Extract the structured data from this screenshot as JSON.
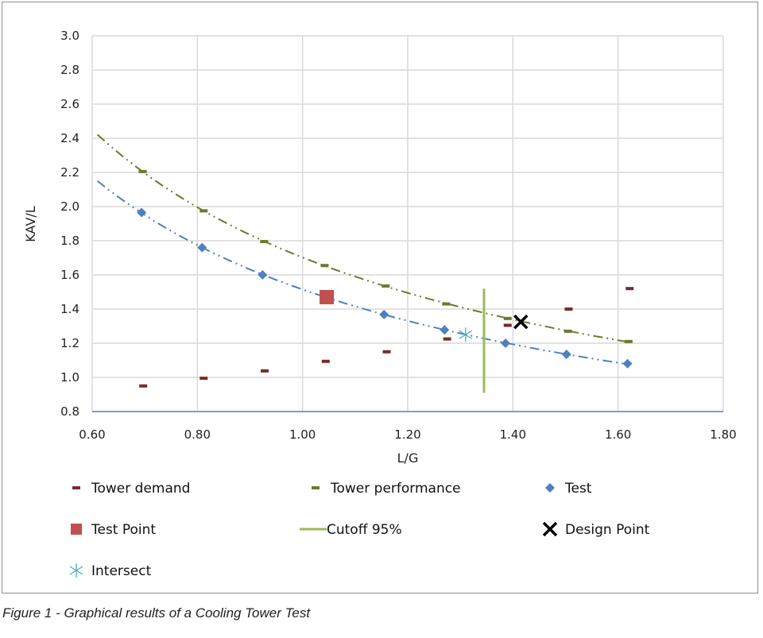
{
  "chart_data": {
    "type": "scatter",
    "xlabel": "L/G",
    "ylabel": "KAV/L",
    "xlim": [
      0.6,
      1.8
    ],
    "ylim": [
      0.8,
      3.0
    ],
    "xticks": [
      "0.60",
      "0.80",
      "1.00",
      "1.20",
      "1.40",
      "1.60",
      "1.80"
    ],
    "yticks": [
      "0.8",
      "1.0",
      "1.2",
      "1.4",
      "1.6",
      "1.8",
      "2.0",
      "2.2",
      "2.4",
      "2.6",
      "2.8",
      "3.0"
    ],
    "grid": true,
    "legend_placement": "bottom",
    "series": [
      {
        "name": "Tower demand",
        "marker": "dash",
        "color": "#7b2a2a",
        "x": [
          0.697,
          0.812,
          0.928,
          1.044,
          1.16,
          1.275,
          1.39,
          1.506,
          1.622
        ],
        "y": [
          0.95,
          0.995,
          1.038,
          1.094,
          1.15,
          1.225,
          1.305,
          1.4,
          1.52
        ]
      },
      {
        "name": "Tower performance",
        "marker": "dash",
        "color": "#6b7b2f",
        "trendline": "power",
        "x": [
          0.696,
          0.812,
          0.927,
          1.042,
          1.158,
          1.273,
          1.39,
          1.505,
          1.62
        ],
        "y": [
          2.205,
          1.975,
          1.795,
          1.655,
          1.535,
          1.43,
          1.345,
          1.27,
          1.21
        ]
      },
      {
        "name": "Test",
        "marker": "diamond",
        "color": "#4f81bd",
        "trendline": "power",
        "x": [
          0.694,
          0.809,
          0.924,
          1.155,
          1.27,
          1.386,
          1.502,
          1.618
        ],
        "y": [
          1.965,
          1.76,
          1.6,
          1.368,
          1.278,
          1.2,
          1.135,
          1.08
        ]
      },
      {
        "name": "Test Point",
        "marker": "square",
        "color": "#c0504d",
        "x": [
          1.046
        ],
        "y": [
          1.47
        ]
      },
      {
        "name": "Cutoff 95%",
        "marker": "line",
        "color": "#9bbb59",
        "x": [
          1.345,
          1.345
        ],
        "y": [
          0.91,
          1.52
        ]
      },
      {
        "name": "Design Point",
        "marker": "x",
        "color": "#000000",
        "x": [
          1.415
        ],
        "y": [
          1.325
        ]
      },
      {
        "name": "Intersect",
        "marker": "asterisk",
        "color": "#4bacc6",
        "x": [
          1.31
        ],
        "y": [
          1.25
        ]
      }
    ]
  },
  "caption": "Figure 1 - Graphical results of a Cooling Tower Test"
}
